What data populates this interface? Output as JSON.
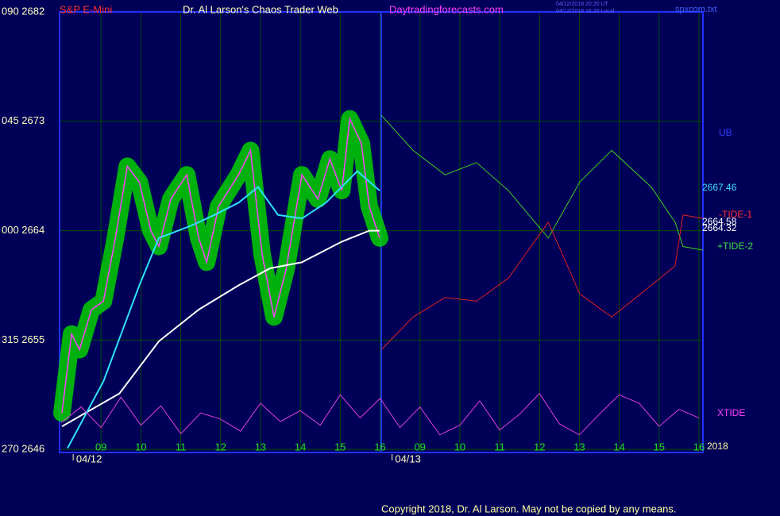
{
  "header": {
    "symbol": "S&P E-Mini",
    "title": "Dr. Al Larson's Chaos Trader Web",
    "site": "Daytradingforecasts.com",
    "stamp1": "04/12/2018 20:20 UT",
    "stamp2": "04/12/2018 16:20 Local",
    "file": "spxcom.txt",
    "copyright": "Copyright 2018, Dr. Al Larson. May not be copied by any means."
  },
  "chart_data": {
    "type": "line",
    "xlim": [
      -1.04,
      15.1
    ],
    "ylim": [
      2645.75,
      2682
    ],
    "grid": true,
    "yticks": [
      {
        "value": 2682,
        "label": "090  2682"
      },
      {
        "value": 2673,
        "label": "045  2673"
      },
      {
        "value": 2664,
        "label": "000  2664"
      },
      {
        "value": 2655,
        "label": "315  2655"
      },
      {
        "value": 2646,
        "label": "270  2646"
      }
    ],
    "xticks": [
      {
        "value": 0,
        "label": "09"
      },
      {
        "value": 1,
        "label": "10"
      },
      {
        "value": 2,
        "label": "11"
      },
      {
        "value": 3,
        "label": "12"
      },
      {
        "value": 4,
        "label": "13"
      },
      {
        "value": 5,
        "label": "14"
      },
      {
        "value": 6,
        "label": "15"
      },
      {
        "value": 7,
        "label": "16"
      },
      {
        "value": 8,
        "label": "09"
      },
      {
        "value": 9,
        "label": "10"
      },
      {
        "value": 10,
        "label": "11"
      },
      {
        "value": 11,
        "label": "12"
      },
      {
        "value": 12,
        "label": "13"
      },
      {
        "value": 13,
        "label": "14"
      },
      {
        "value": 14,
        "label": "15"
      },
      {
        "value": 15,
        "label": "16"
      }
    ],
    "date_labels": [
      {
        "value": -0.3,
        "label": "04/12"
      },
      {
        "value": 7.7,
        "label": "04/13"
      }
    ],
    "series": [
      {
        "color": "#ff40ff",
        "glow": "#00d000",
        "width": 1.5,
        "x": [
          -0.98,
          -0.74,
          -0.54,
          -0.24,
          0.06,
          0.36,
          0.66,
          0.96,
          1.25,
          1.45,
          1.75,
          2.15,
          2.45,
          2.65,
          2.95,
          3.45,
          3.75,
          4.04,
          4.34,
          4.64,
          5.04,
          5.44,
          5.74,
          6.04,
          6.24,
          6.53,
          6.73,
          6.99
        ],
        "values": [
          2649,
          2655.5,
          2654.2,
          2657.5,
          2658.2,
          2663.4,
          2669.3,
          2668,
          2664,
          2662.7,
          2666.6,
          2668.6,
          2663.4,
          2661.4,
          2666,
          2668.6,
          2670.6,
          2662.1,
          2656.9,
          2660.8,
          2668.6,
          2666.6,
          2669.9,
          2667.3,
          2673.2,
          2671.2,
          2666,
          2663.4
        ]
      },
      {
        "color": "#ffffff",
        "width": 2,
        "x": [
          -0.98,
          0.46,
          1.45,
          2.45,
          3.45,
          4.24,
          5.04,
          6.04,
          6.73,
          6.99
        ],
        "values": [
          2647.9,
          2650.6,
          2654.9,
          2657.5,
          2659.5,
          2660.9,
          2661.4,
          2663.1,
          2664.0,
          2664.0
        ]
      },
      {
        "color": "#30e0ff",
        "width": 2,
        "x": [
          -0.84,
          0.06,
          0.96,
          1.45,
          2.25,
          2.85,
          3.45,
          3.94,
          4.44,
          5.04,
          5.64,
          6.43,
          6.99
        ],
        "values": [
          2646.1,
          2651.6,
          2659.5,
          2663.4,
          2664.4,
          2665.3,
          2666.3,
          2667.6,
          2665.3,
          2665.0,
          2666.3,
          2668.9,
          2667.3
        ]
      },
      {
        "color": "#40d020",
        "width": 1,
        "x": [
          7.03,
          7.83,
          8.63,
          9.42,
          10.22,
          11.22,
          12.01,
          12.81,
          13.8,
          14.4,
          14.6,
          15.1
        ],
        "values": [
          2673.5,
          2670.6,
          2668.6,
          2669.6,
          2667.3,
          2663.4,
          2668,
          2670.6,
          2667.6,
          2664.7,
          2662.7,
          2662.4
        ]
      },
      {
        "color": "#e02020",
        "width": 1,
        "x": [
          7.03,
          7.83,
          8.63,
          9.42,
          10.22,
          11.22,
          12.01,
          12.81,
          13.8,
          14.4,
          14.6,
          15.1
        ],
        "values": [
          2654.2,
          2656.9,
          2658.5,
          2658.2,
          2660.1,
          2664.7,
          2658.8,
          2656.9,
          2659.5,
          2661.1,
          2665.3,
          2665
        ]
      },
      {
        "color": "#e040e0",
        "width": 1,
        "x": [
          -1,
          -0.5,
          0,
          0.5,
          1,
          1.5,
          2,
          2.5,
          3,
          3.5,
          4,
          4.5,
          5,
          5.5,
          6,
          6.5,
          7,
          7.5,
          8,
          8.5,
          9,
          9.5,
          10,
          10.5,
          11,
          11.5,
          12,
          12.5,
          13,
          13.5,
          14,
          14.5,
          15
        ],
        "values": [
          2648.2,
          2649.5,
          2647.8,
          2650.3,
          2648.0,
          2649.6,
          2647.3,
          2649.0,
          2648.5,
          2647.5,
          2649.8,
          2648.3,
          2649.2,
          2648.0,
          2650.5,
          2648.6,
          2650.2,
          2647.8,
          2649.5,
          2647.2,
          2648.0,
          2650.0,
          2647.6,
          2648.9,
          2650.6,
          2648.1,
          2647.2,
          2648.9,
          2650.5,
          2649.8,
          2647.9,
          2649.3,
          2648.6
        ]
      }
    ],
    "annotations": [
      {
        "text": "UB",
        "color": "#3040ff"
      },
      {
        "text": "2667.46",
        "color": "#40e0ff"
      },
      {
        "text": "-TIDE-1",
        "color": "#ff3030"
      },
      {
        "text": "2664.58",
        "color": "#ffffff"
      },
      {
        "text": "2664.32",
        "color": "#ffffff"
      },
      {
        "text": "+TIDE-2",
        "color": "#40e040"
      },
      {
        "text": "XTIDE",
        "color": "#ff40ff"
      },
      {
        "text": "2018",
        "color": "#ffffa0"
      }
    ]
  }
}
